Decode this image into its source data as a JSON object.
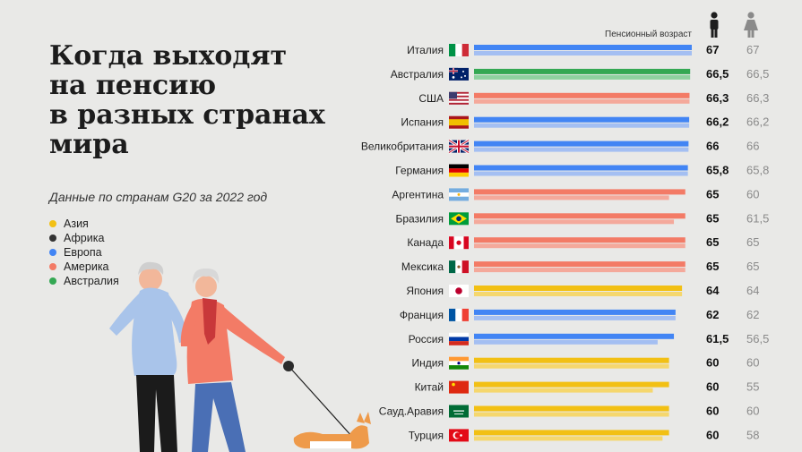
{
  "title_lines": [
    "Когда выходят",
    "на пенсию",
    "в разных странах",
    "мира"
  ],
  "subtitle": "Данные по странам G20 за 2022 год",
  "legend": [
    {
      "label": "Азия",
      "color": "#f2c014"
    },
    {
      "label": "Африка",
      "color": "#333333"
    },
    {
      "label": "Европа",
      "color": "#4285f4"
    },
    {
      "label": "Америка",
      "color": "#f37b66"
    },
    {
      "label": "Австралия",
      "color": "#34a853"
    }
  ],
  "header": {
    "label": "Пенсионный возраст",
    "male_icon": "man-icon",
    "female_icon": "woman-icon"
  },
  "chart_data": {
    "type": "bar",
    "title": "Когда выходят на пенсию в разных странах мира",
    "subtitle": "Данные по странам G20 за 2022 год",
    "xlabel": "Пенсионный возраст",
    "categories": [
      "Италия",
      "Австралия",
      "США",
      "Испания",
      "Великобритания",
      "Германия",
      "Аргентина",
      "Бразилия",
      "Канада",
      "Мексика",
      "Япония",
      "Франция",
      "Россия",
      "Индия",
      "Китай",
      "Сауд.Аравия",
      "Турция"
    ],
    "regions": [
      "Европа",
      "Австралия",
      "Америка",
      "Европа",
      "Европа",
      "Европа",
      "Америка",
      "Америка",
      "Америка",
      "Америка",
      "Азия",
      "Европа",
      "Европа",
      "Азия",
      "Азия",
      "Азия",
      "Азия"
    ],
    "flags": [
      "flag-italy-icon",
      "flag-australia-icon",
      "flag-usa-icon",
      "flag-spain-icon",
      "flag-uk-icon",
      "flag-germany-icon",
      "flag-argentina-icon",
      "flag-brazil-icon",
      "flag-canada-icon",
      "flag-mexico-icon",
      "flag-japan-icon",
      "flag-france-icon",
      "flag-russia-icon",
      "flag-india-icon",
      "flag-china-icon",
      "flag-saudi-arabia-icon",
      "flag-turkey-icon"
    ],
    "series": [
      {
        "name": "Мужчины",
        "values": [
          67,
          66.5,
          66.3,
          66.2,
          66,
          65.8,
          65,
          65,
          65,
          65,
          64,
          62,
          61.5,
          60,
          60,
          60,
          60
        ]
      },
      {
        "name": "Женщины",
        "values": [
          67,
          66.5,
          66.3,
          66.2,
          66,
          65.8,
          60,
          61.5,
          65,
          65,
          64,
          62,
          56.5,
          60,
          55,
          60,
          58
        ]
      }
    ],
    "value_labels": {
      "male": [
        "67",
        "66,5",
        "66,3",
        "66,2",
        "66",
        "65,8",
        "65",
        "65",
        "65",
        "65",
        "64",
        "62",
        "61,5",
        "60",
        "60",
        "60",
        "60"
      ],
      "female": [
        "67",
        "66,5",
        "66,3",
        "66,2",
        "66",
        "65,8",
        "60",
        "61,5",
        "65",
        "65",
        "64",
        "62",
        "56,5",
        "60",
        "55",
        "60",
        "58"
      ]
    },
    "xlim": [
      0,
      67
    ],
    "grid": false,
    "legend_position": "left"
  },
  "colors": {
    "Азия": {
      "main": "#f2c014",
      "light": "#f5d76e"
    },
    "Африка": {
      "main": "#333333",
      "light": "#777777"
    },
    "Европа": {
      "main": "#4285f4",
      "light": "#a4bff2"
    },
    "Америка": {
      "main": "#f37b66",
      "light": "#f4a99b"
    },
    "Австралия": {
      "main": "#34a853",
      "light": "#8ed19f"
    }
  }
}
